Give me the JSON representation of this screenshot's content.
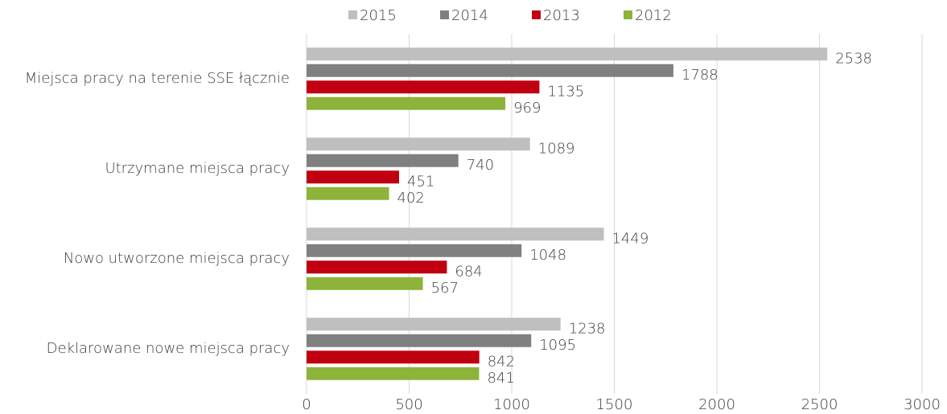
{
  "chart_data": {
    "type": "barh",
    "categories": [
      "Miejsca pracy na terenie SSE łącznie",
      "Utrzymane miejsca pracy",
      "Nowo utworzone miejsca pracy",
      "Deklarowane nowe miejsca pracy"
    ],
    "series": [
      {
        "name": "2015",
        "color": "#bfbfbf",
        "values": [
          2538,
          1089,
          1449,
          1238
        ]
      },
      {
        "name": "2014",
        "color": "#808080",
        "values": [
          1788,
          740,
          1048,
          1095
        ]
      },
      {
        "name": "2013",
        "color": "#c00010",
        "values": [
          1135,
          451,
          684,
          842
        ]
      },
      {
        "name": "2012",
        "color": "#8db33a",
        "values": [
          969,
          402,
          567,
          841
        ]
      }
    ],
    "xlim": [
      0,
      3000
    ],
    "xticks": [
      0,
      500,
      1000,
      1500,
      2000,
      2500,
      3000
    ],
    "grid": true,
    "legend": "top"
  }
}
